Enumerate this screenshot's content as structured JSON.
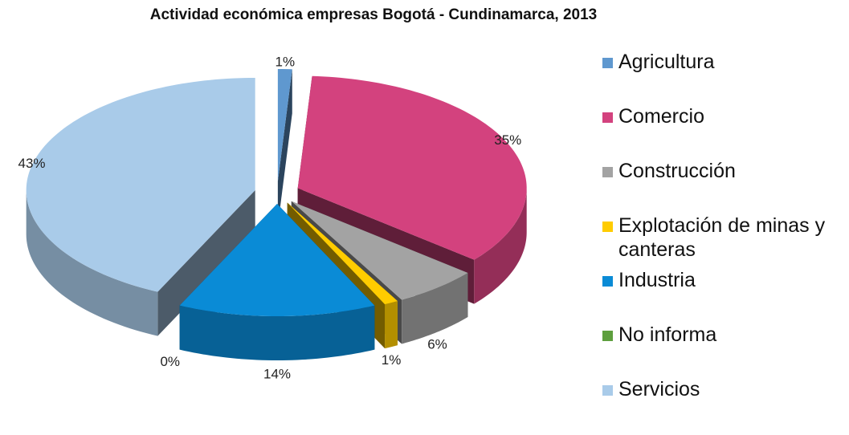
{
  "chart_data": {
    "type": "pie3d",
    "title": "Actividad económica empresas Bogotá - Cundinamarca, 2013",
    "categories": [
      "Agricultura",
      "Comercio",
      "Construcción",
      "Explotación de minas y canteras",
      "Industria",
      "No informa",
      "Servicios"
    ],
    "values": [
      1,
      35,
      6,
      1,
      14,
      0,
      43
    ],
    "value_labels": [
      "1%",
      "35%",
      "6%",
      "1%",
      "14%",
      "0%",
      "43%"
    ],
    "colors": [
      "#5f98cf",
      "#d3427e",
      "#a3a3a3",
      "#ffcc00",
      "#0a8bd6",
      "#5e9f3e",
      "#a9cbe9"
    ],
    "legend": "right"
  }
}
